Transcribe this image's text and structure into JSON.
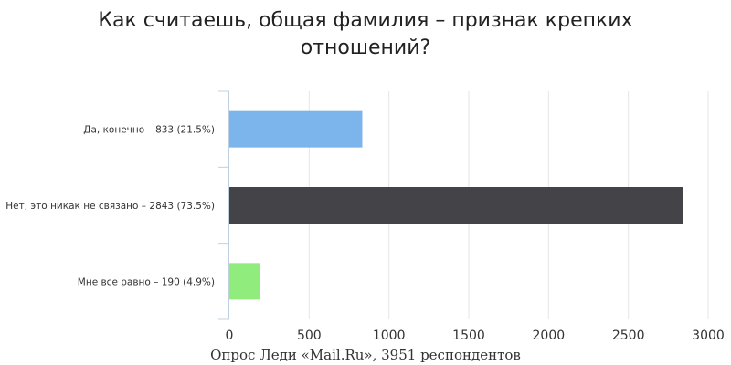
{
  "chart_data": {
    "type": "bar",
    "orientation": "horizontal",
    "title_lines": [
      "Как считаешь, общая фамилия – признак крепких",
      "отношений?"
    ],
    "categories": [
      "Да, конечно – 833 (21.5%)",
      "Нет, это никак не связано – 2843 (73.5%)",
      "Мне все равно – 190 (4.9%)"
    ],
    "values": [
      833,
      2843,
      190
    ],
    "colors": [
      "#7cb5ec",
      "#434348",
      "#90ed7d"
    ],
    "xlim": [
      0,
      3000
    ],
    "ticks": [
      "0",
      "500",
      "1000",
      "1500",
      "2000",
      "2500",
      "3000"
    ],
    "grid": true,
    "source": "Опрос Леди «Mail.Ru», 3951 респондентов"
  }
}
